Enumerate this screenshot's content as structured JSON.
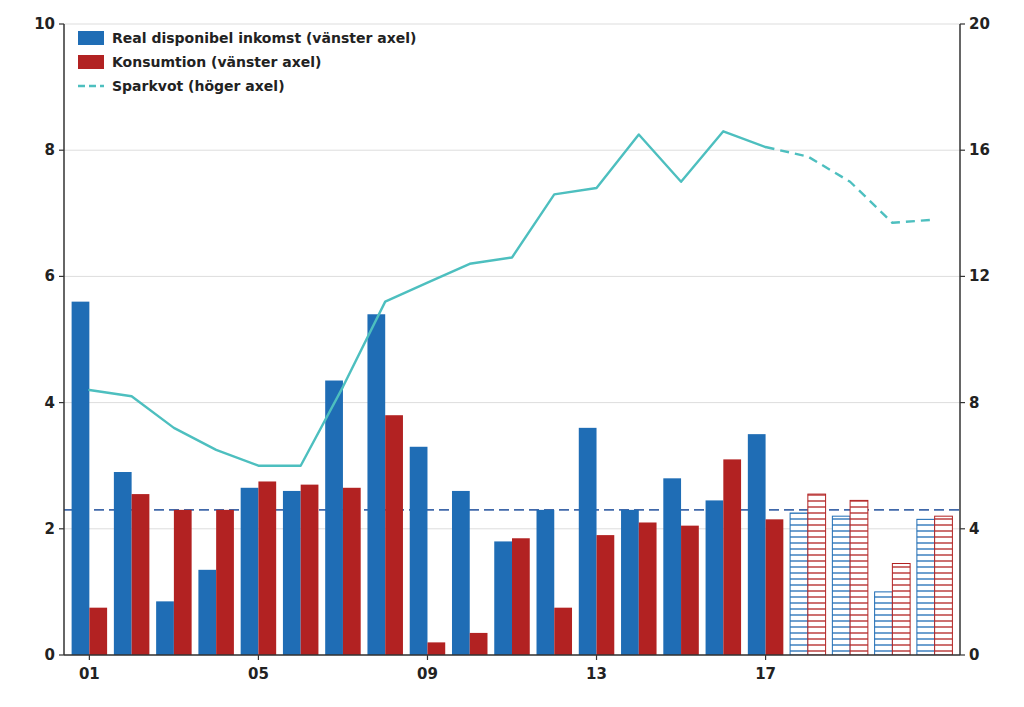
{
  "chart_data": {
    "type": "bar",
    "x": [
      2001,
      2002,
      2003,
      2004,
      2005,
      2006,
      2007,
      2008,
      2009,
      2010,
      2011,
      2012,
      2013,
      2014,
      2015,
      2016,
      2017,
      2018,
      2019,
      2020,
      2021
    ],
    "xlim": [
      2000.4,
      2021.6
    ],
    "xticks": [
      {
        "value": 2001,
        "label": "01"
      },
      {
        "value": 2005,
        "label": "05"
      },
      {
        "value": 2009,
        "label": "09"
      },
      {
        "value": 2013,
        "label": "13"
      },
      {
        "value": 2017,
        "label": "17"
      }
    ],
    "ylim": [
      0,
      10
    ],
    "yticks": [
      0,
      2,
      4,
      6,
      8,
      10
    ],
    "y2lim": [
      0,
      20
    ],
    "y2ticks": [
      0,
      4,
      8,
      12,
      16,
      20
    ],
    "grid": true,
    "legend": "upper left",
    "forecast_start": 2018,
    "reference_line": {
      "value": 2.3,
      "color": "#4169AA"
    },
    "series": [
      {
        "name": "Real disponibel inkomst (vänster axel)",
        "type": "bar",
        "color": "#1F6DB5",
        "values": [
          5.6,
          2.9,
          0.85,
          1.35,
          2.65,
          2.6,
          4.35,
          5.4,
          3.3,
          2.6,
          1.8,
          2.3,
          3.6,
          2.3,
          2.8,
          2.45,
          3.5,
          2.25,
          2.2,
          1.0,
          2.15
        ]
      },
      {
        "name": "Konsumtion (vänster axel)",
        "type": "bar",
        "color": "#B22222",
        "values": [
          0.75,
          2.55,
          2.3,
          2.3,
          2.75,
          2.7,
          2.65,
          3.8,
          0.2,
          0.35,
          1.85,
          0.75,
          1.9,
          2.1,
          2.05,
          3.1,
          2.15,
          2.55,
          2.45,
          1.45,
          2.2
        ]
      },
      {
        "name": "Sparkvot (höger axel)",
        "type": "line",
        "axis": "y2",
        "color": "#4DBFBF",
        "line_style": "solid",
        "values": [
          8.4,
          8.2,
          7.2,
          6.5,
          6.0,
          6.0,
          8.5,
          11.2,
          11.8,
          12.4,
          12.6,
          14.6,
          14.8,
          16.5,
          15.0,
          16.6,
          16.1,
          15.8,
          15.0,
          13.7,
          13.8
        ]
      }
    ]
  }
}
